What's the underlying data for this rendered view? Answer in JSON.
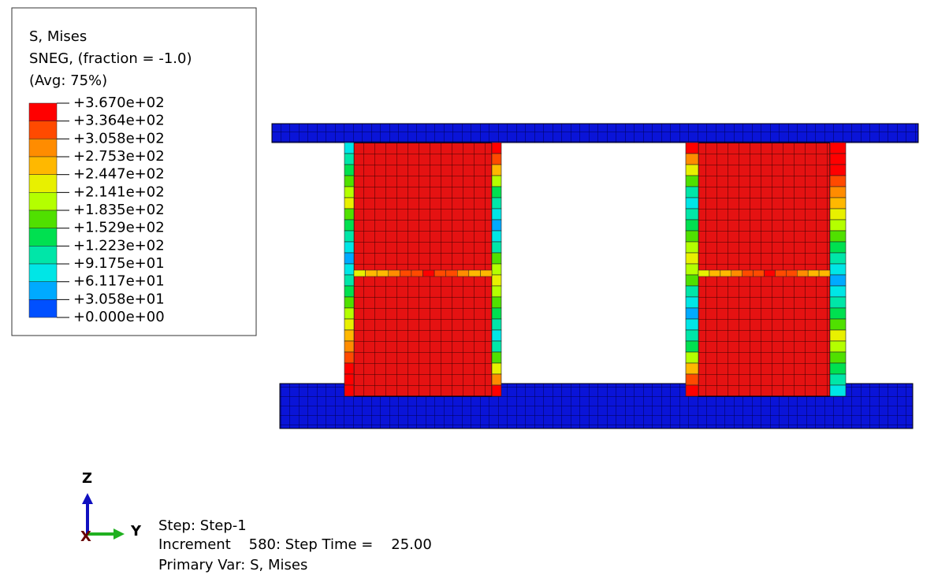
{
  "legend": {
    "lines": [
      "S, Mises",
      "SNEG, (fraction = -1.0)",
      "(Avg: 75%)"
    ],
    "levels": [
      "+3.670e+02",
      "+3.364e+02",
      "+3.058e+02",
      "+2.753e+02",
      "+2.447e+02",
      "+2.141e+02",
      "+1.835e+02",
      "+1.529e+02",
      "+1.223e+02",
      "+9.175e+01",
      "+6.117e+01",
      "+3.058e+01",
      "+0.000e+00"
    ]
  },
  "triad": {
    "z": "Z",
    "y": "Y",
    "x": "X"
  },
  "status": {
    "step": "Step: Step-1",
    "increment": "Increment    580: Step Time =    25.00",
    "primary_var": "Primary Var: S, Mises"
  }
}
